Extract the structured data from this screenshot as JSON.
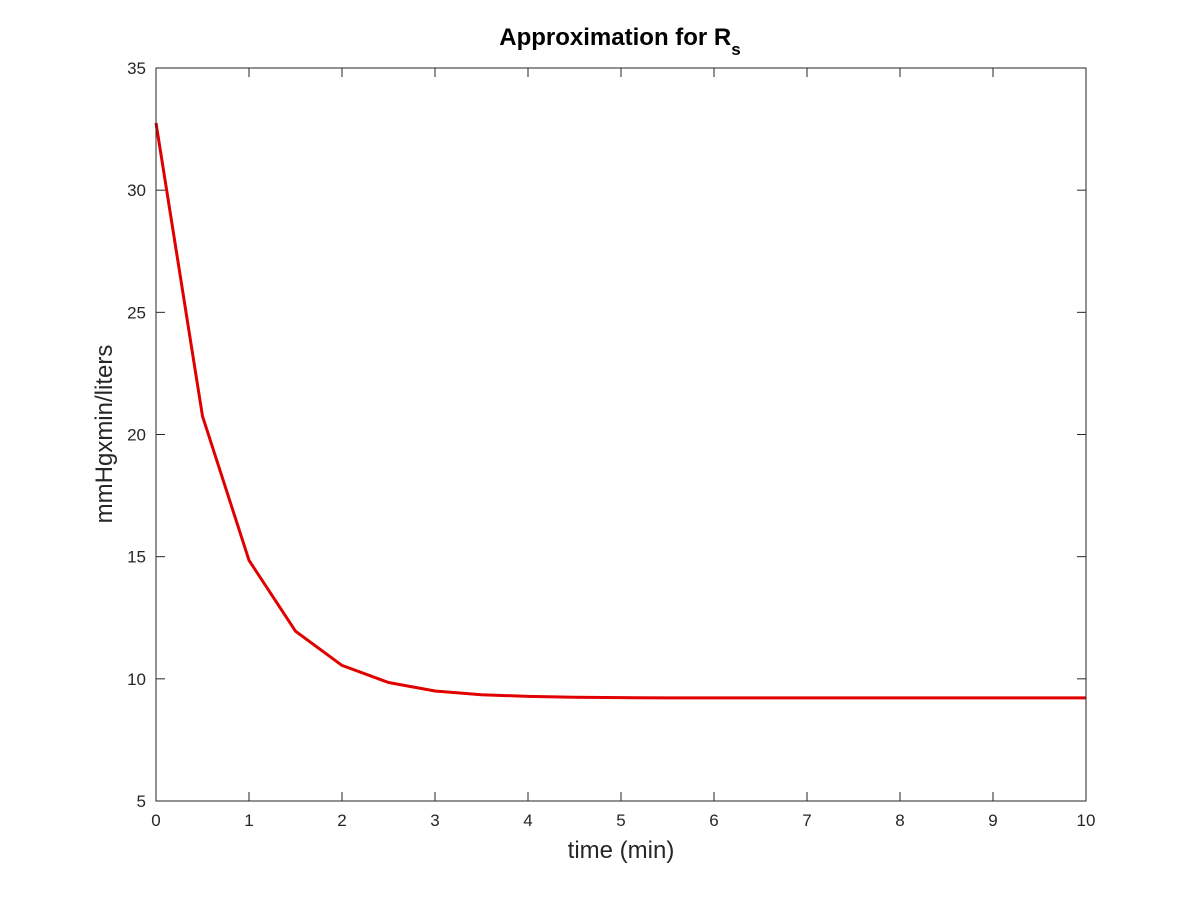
{
  "chart_data": {
    "type": "line",
    "title": {
      "main": "Approximation for R",
      "subscript": "s"
    },
    "xlabel": "time (min)",
    "ylabel": "mmHgxmin/liters",
    "xlim": [
      0,
      10
    ],
    "ylim": [
      5,
      35
    ],
    "xticks": [
      "0",
      "1",
      "2",
      "3",
      "4",
      "5",
      "6",
      "7",
      "8",
      "9",
      "10"
    ],
    "yticks": [
      "5",
      "10",
      "15",
      "20",
      "25",
      "30",
      "35"
    ],
    "grid": false,
    "legend": "none",
    "series": [
      {
        "color": "#e00000",
        "x": [
          0,
          0.5,
          1,
          1.5,
          2,
          2.5,
          3,
          3.5,
          4,
          4.5,
          5,
          5.5,
          6,
          6.5,
          7,
          7.5,
          8,
          8.5,
          9,
          9.5,
          10
        ],
        "y": [
          32.75,
          20.75,
          14.85,
          11.95,
          10.55,
          9.85,
          9.5,
          9.35,
          9.28,
          9.25,
          9.23,
          9.22,
          9.22,
          9.22,
          9.22,
          9.22,
          9.22,
          9.22,
          9.22,
          9.22,
          9.22
        ]
      }
    ]
  }
}
